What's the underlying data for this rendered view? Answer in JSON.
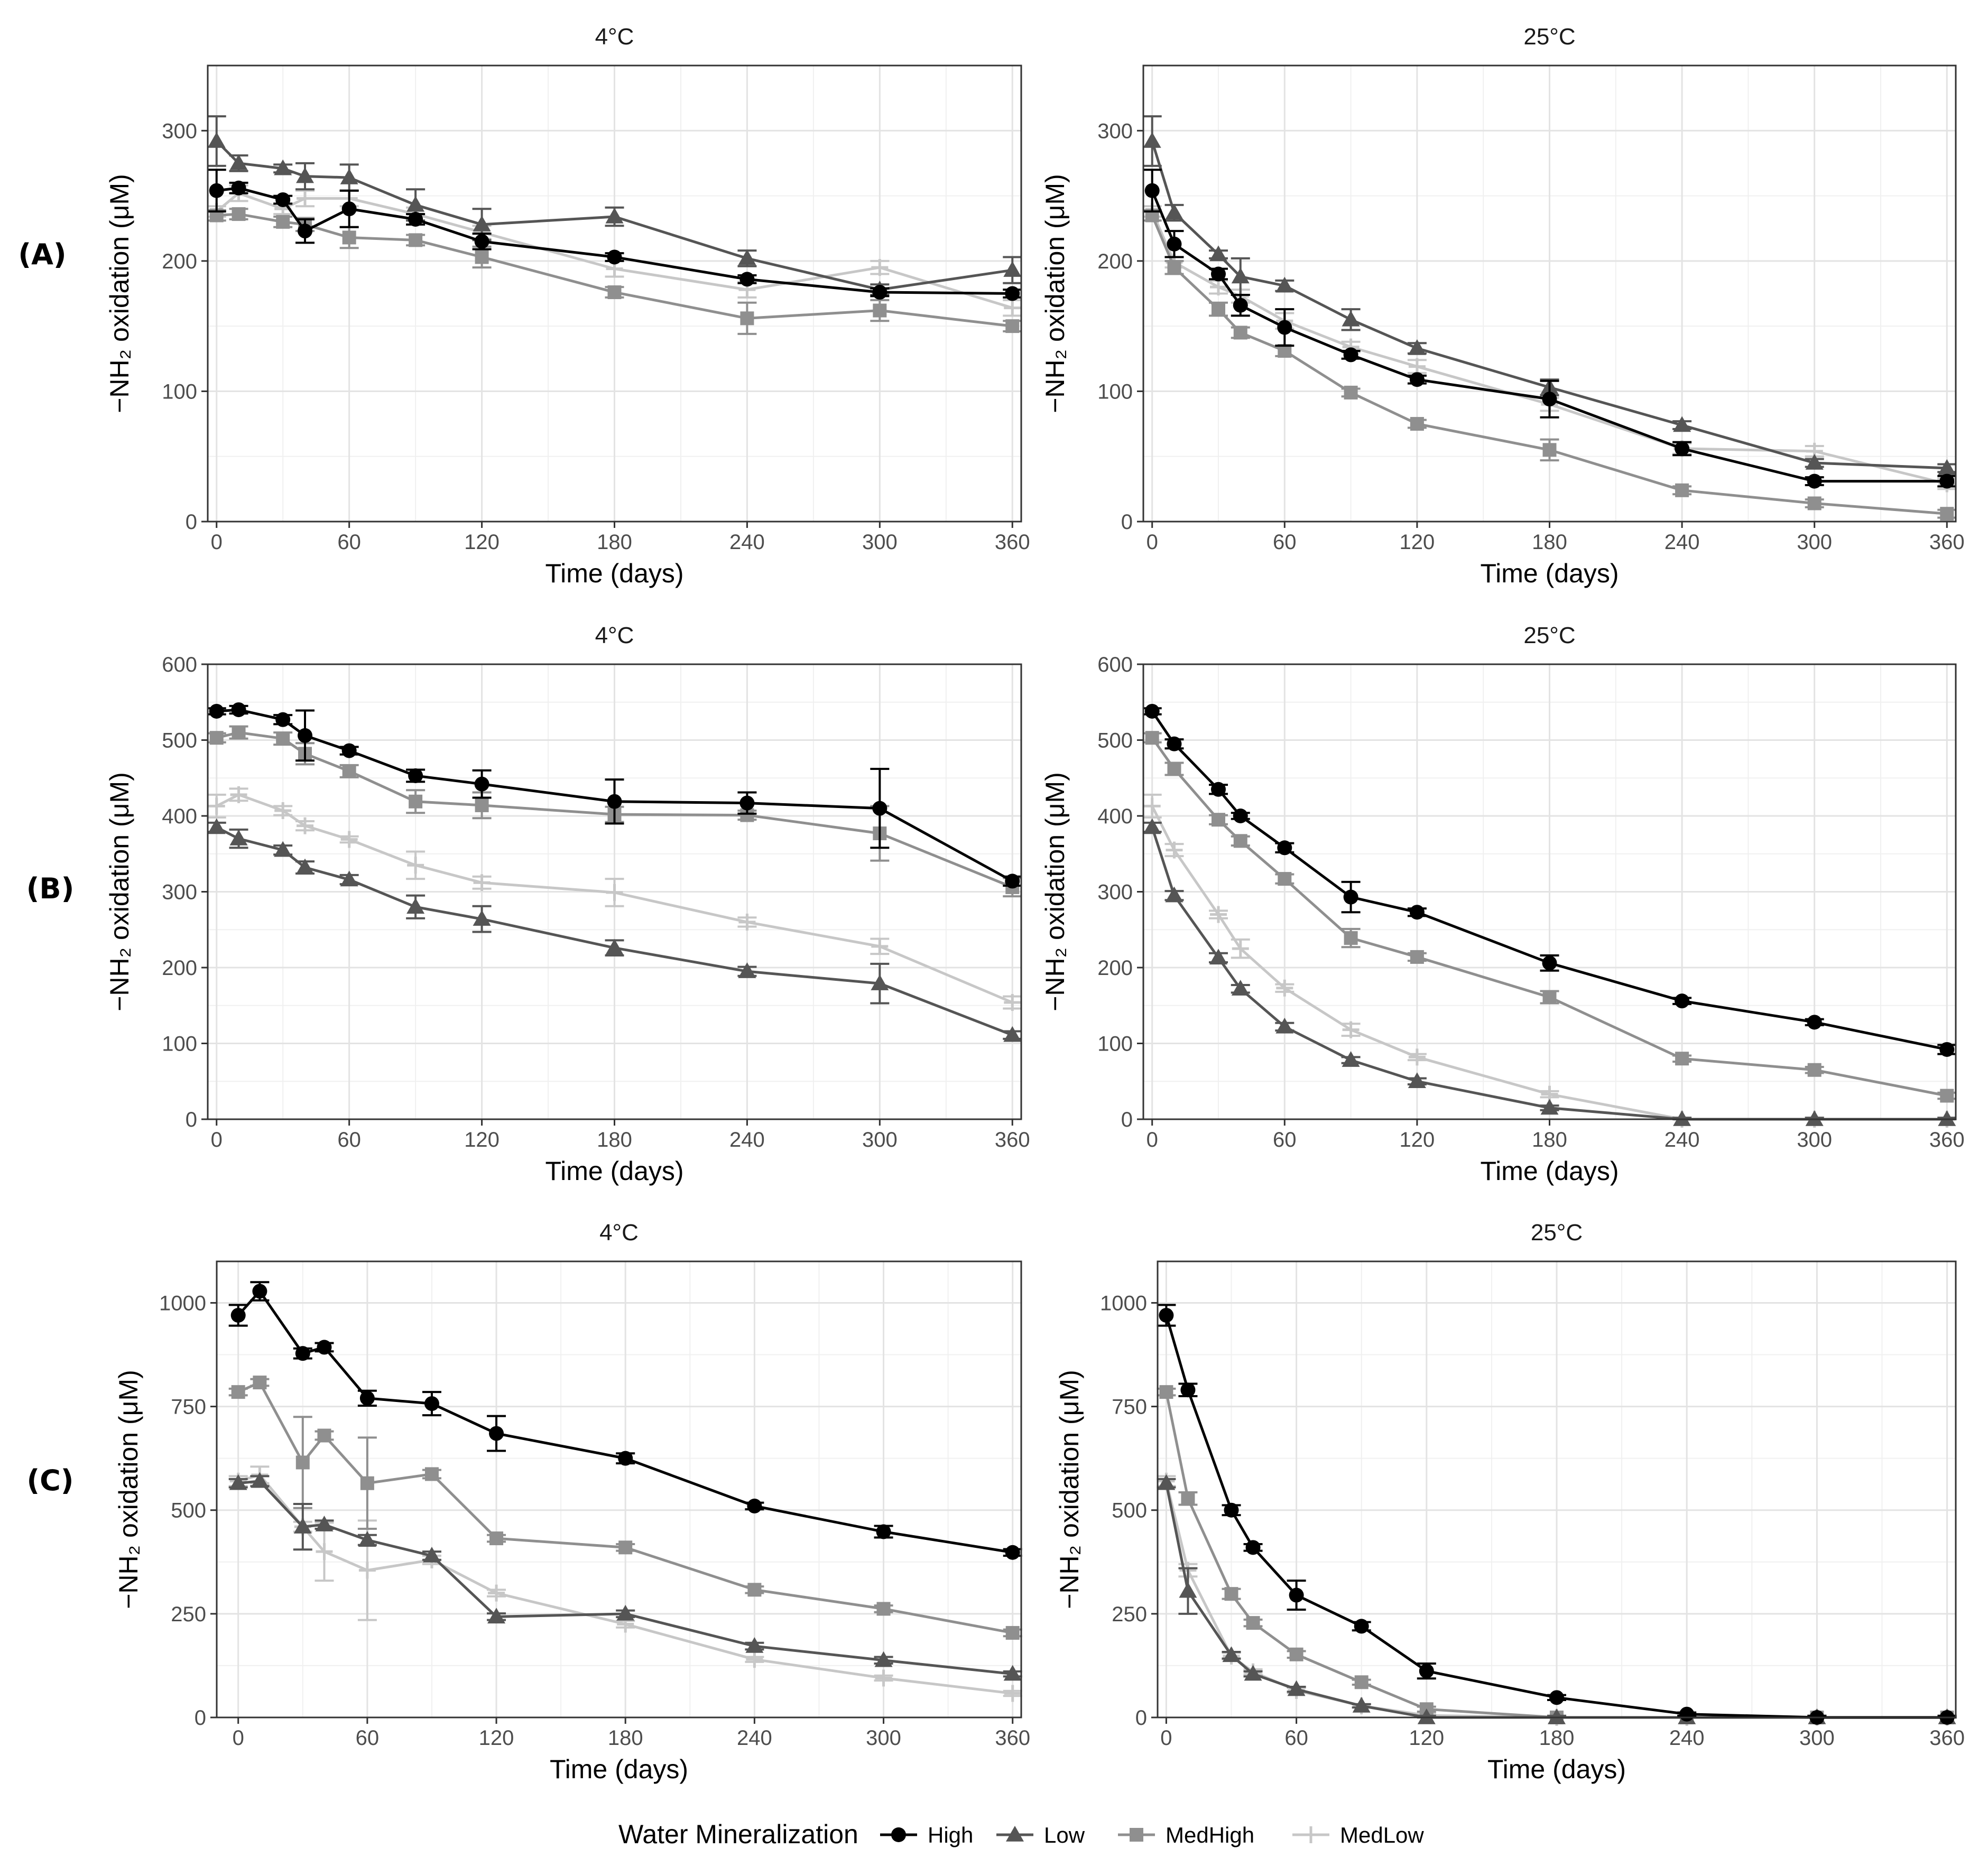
{
  "x_axis_label": "Time (days)",
  "y_axis_label": "−NH₂ oxidation (μM)",
  "legend": {
    "title": "Water Mineralization",
    "entries": [
      {
        "series": "High",
        "label": "High"
      },
      {
        "series": "Low",
        "label": "Low"
      },
      {
        "series": "MedHigh",
        "label": "MedHigh"
      },
      {
        "series": "MedLow",
        "label": "MedLow"
      }
    ]
  },
  "series_styles": {
    "High": {
      "color": "#000000",
      "marker": "circle"
    },
    "Low": {
      "color": "#555555",
      "marker": "triangle"
    },
    "MedHigh": {
      "color": "#8f8f8f",
      "marker": "square"
    },
    "MedLow": {
      "color": "#c7c7c7",
      "marker": "plus"
    }
  },
  "rows": [
    {
      "label": "(A)"
    },
    {
      "label": "(B)"
    },
    {
      "label": "(C)"
    }
  ],
  "chart_data": [
    {
      "type": "line",
      "row": 0,
      "col": 0,
      "title": "4°C",
      "xlabel": "Time (days)",
      "ylabel": "−NH₂ oxidation (μM)",
      "xlim": [
        -4,
        364
      ],
      "ylim": [
        0,
        350
      ],
      "xticks": [
        0,
        60,
        120,
        180,
        240,
        300,
        360
      ],
      "yticks": [
        0,
        100,
        200,
        300
      ],
      "x": [
        0,
        10,
        30,
        40,
        60,
        90,
        120,
        180,
        240,
        300,
        360
      ],
      "series": [
        {
          "name": "High",
          "values": [
            254,
            256,
            247,
            223,
            240,
            232,
            215,
            203,
            186,
            176,
            175
          ],
          "err": [
            16,
            4,
            3,
            9,
            14,
            4,
            6,
            3,
            3,
            3,
            3
          ]
        },
        {
          "name": "Low",
          "values": [
            292,
            275,
            271,
            265,
            264,
            243,
            228,
            234,
            202,
            178,
            193
          ],
          "err": [
            19,
            6,
            3,
            10,
            10,
            12,
            12,
            7,
            6,
            4,
            10
          ]
        },
        {
          "name": "MedHigh",
          "values": [
            235,
            236,
            230,
            228,
            218,
            216,
            203,
            176,
            156,
            162,
            150
          ],
          "err": [
            4,
            4,
            4,
            5,
            8,
            4,
            8,
            4,
            12,
            8,
            4
          ]
        },
        {
          "name": "MedLow",
          "values": [
            238,
            252,
            240,
            248,
            248,
            236,
            222,
            194,
            178,
            195,
            164
          ],
          "err": [
            4,
            6,
            4,
            6,
            6,
            5,
            5,
            6,
            6,
            5,
            6
          ]
        }
      ]
    },
    {
      "type": "line",
      "row": 0,
      "col": 1,
      "title": "25°C",
      "xlabel": "Time (days)",
      "ylabel": "−NH₂ oxidation (μM)",
      "xlim": [
        -4,
        364
      ],
      "ylim": [
        0,
        350
      ],
      "xticks": [
        0,
        60,
        120,
        180,
        240,
        300,
        360
      ],
      "yticks": [
        0,
        100,
        200,
        300
      ],
      "x": [
        0,
        10,
        30,
        40,
        60,
        90,
        120,
        180,
        240,
        300,
        360
      ],
      "series": [
        {
          "name": "High",
          "values": [
            254,
            213,
            190,
            166,
            149,
            128,
            109,
            94,
            56,
            31,
            31
          ],
          "err": [
            16,
            10,
            4,
            8,
            14,
            3,
            3,
            14,
            5,
            3,
            4
          ]
        },
        {
          "name": "Low",
          "values": [
            292,
            237,
            205,
            188,
            181,
            155,
            133,
            103,
            74,
            45,
            41
          ],
          "err": [
            19,
            6,
            3,
            14,
            4,
            8,
            4,
            6,
            3,
            3,
            3
          ]
        },
        {
          "name": "MedHigh",
          "values": [
            235,
            195,
            163,
            145,
            131,
            99,
            75,
            55,
            24,
            14,
            6
          ],
          "err": [
            4,
            5,
            5,
            4,
            4,
            3,
            3,
            8,
            3,
            3,
            3
          ]
        },
        {
          "name": "MedLow",
          "values": [
            238,
            199,
            180,
            173,
            154,
            134,
            119,
            90,
            56,
            54,
            29
          ],
          "err": [
            4,
            4,
            5,
            5,
            6,
            4,
            5,
            5,
            4,
            4,
            4
          ]
        }
      ]
    },
    {
      "type": "line",
      "row": 1,
      "col": 0,
      "title": "4°C",
      "xlabel": "Time (days)",
      "ylabel": "−NH₂ oxidation (μM)",
      "xlim": [
        -4,
        364
      ],
      "ylim": [
        0,
        600
      ],
      "xticks": [
        0,
        60,
        120,
        180,
        240,
        300,
        360
      ],
      "yticks": [
        0,
        100,
        200,
        300,
        400,
        500,
        600
      ],
      "x": [
        0,
        10,
        30,
        40,
        60,
        90,
        120,
        180,
        240,
        300,
        360
      ],
      "series": [
        {
          "name": "High",
          "values": [
            538,
            540,
            527,
            506,
            486,
            453,
            442,
            419,
            417,
            410,
            314
          ],
          "err": [
            4,
            5,
            6,
            33,
            5,
            8,
            18,
            29,
            14,
            52,
            6
          ]
        },
        {
          "name": "Low",
          "values": [
            385,
            370,
            355,
            332,
            316,
            280,
            264,
            226,
            195,
            179,
            111
          ],
          "err": [
            6,
            12,
            6,
            8,
            6,
            15,
            17,
            10,
            6,
            26,
            5
          ]
        },
        {
          "name": "MedHigh",
          "values": [
            503,
            510,
            502,
            482,
            459,
            419,
            414,
            402,
            401,
            377,
            306
          ],
          "err": [
            6,
            8,
            8,
            14,
            8,
            15,
            17,
            10,
            6,
            36,
            12
          ]
        },
        {
          "name": "MedLow",
          "values": [
            413,
            428,
            407,
            387,
            369,
            335,
            312,
            299,
            260,
            228,
            154
          ],
          "err": [
            15,
            8,
            6,
            6,
            4,
            18,
            8,
            18,
            6,
            10,
            8
          ]
        }
      ]
    },
    {
      "type": "line",
      "row": 1,
      "col": 1,
      "title": "25°C",
      "xlabel": "Time (days)",
      "ylabel": "−NH₂ oxidation (μM)",
      "xlim": [
        -4,
        364
      ],
      "ylim": [
        0,
        600
      ],
      "xticks": [
        0,
        60,
        120,
        180,
        240,
        300,
        360
      ],
      "yticks": [
        0,
        100,
        200,
        300,
        400,
        500,
        600
      ],
      "x": [
        0,
        10,
        30,
        40,
        60,
        90,
        120,
        180,
        240,
        300,
        360
      ],
      "series": [
        {
          "name": "High",
          "values": [
            538,
            495,
            435,
            400,
            358,
            293,
            273,
            206,
            156,
            128,
            92
          ],
          "err": [
            4,
            6,
            6,
            4,
            6,
            20,
            5,
            10,
            4,
            4,
            6
          ]
        },
        {
          "name": "Low",
          "values": [
            385,
            295,
            213,
            172,
            122,
            78,
            50,
            15,
            0,
            0,
            0
          ],
          "err": [
            6,
            6,
            6,
            5,
            5,
            4,
            4,
            3,
            2,
            2,
            2
          ]
        },
        {
          "name": "MedHigh",
          "values": [
            503,
            462,
            395,
            367,
            317,
            239,
            214,
            161,
            80,
            65,
            31
          ],
          "err": [
            6,
            8,
            6,
            6,
            6,
            12,
            5,
            8,
            4,
            4,
            4
          ]
        },
        {
          "name": "MedLow",
          "values": [
            413,
            355,
            270,
            225,
            173,
            118,
            82,
            33,
            0,
            0,
            0
          ],
          "err": [
            15,
            8,
            5,
            12,
            5,
            8,
            4,
            4,
            2,
            2,
            2
          ]
        }
      ]
    },
    {
      "type": "line",
      "row": 2,
      "col": 0,
      "title": "4°C",
      "xlabel": "Time (days)",
      "ylabel": "−NH₂ oxidation (μM)",
      "xlim": [
        -10,
        364
      ],
      "ylim": [
        0,
        1100
      ],
      "xticks": [
        0,
        60,
        120,
        180,
        240,
        300,
        360
      ],
      "yticks": [
        0,
        250,
        500,
        750,
        1000
      ],
      "x": [
        0,
        10,
        30,
        40,
        60,
        90,
        120,
        180,
        240,
        300,
        360
      ],
      "series": [
        {
          "name": "High",
          "values": [
            970,
            1028,
            878,
            893,
            770,
            757,
            685,
            625,
            510,
            448,
            398
          ],
          "err": [
            25,
            22,
            12,
            10,
            18,
            28,
            42,
            12,
            8,
            14,
            8
          ]
        },
        {
          "name": "Low",
          "values": [
            565,
            570,
            460,
            465,
            428,
            390,
            243,
            250,
            172,
            138,
            105
          ],
          "err": [
            10,
            12,
            55,
            10,
            12,
            10,
            8,
            8,
            8,
            8,
            6
          ]
        },
        {
          "name": "MedHigh",
          "values": [
            785,
            808,
            615,
            680,
            565,
            587,
            432,
            410,
            308,
            262,
            204
          ],
          "err": [
            8,
            8,
            110,
            10,
            110,
            10,
            8,
            8,
            8,
            8,
            8
          ]
        },
        {
          "name": "MedLow",
          "values": [
            570,
            585,
            460,
            400,
            355,
            380,
            300,
            225,
            140,
            95,
            58
          ],
          "err": [
            12,
            20,
            12,
            70,
            120,
            10,
            8,
            8,
            6,
            6,
            6
          ]
        }
      ]
    },
    {
      "type": "line",
      "row": 2,
      "col": 1,
      "title": "25°C",
      "xlabel": "Time (days)",
      "ylabel": "−NH₂ oxidation (μM)",
      "xlim": [
        -4,
        364
      ],
      "ylim": [
        0,
        1100
      ],
      "xticks": [
        0,
        60,
        120,
        180,
        240,
        300,
        360
      ],
      "yticks": [
        0,
        250,
        500,
        750,
        1000
      ],
      "x": [
        0,
        10,
        30,
        40,
        60,
        90,
        120,
        180,
        240,
        300,
        360
      ],
      "series": [
        {
          "name": "High",
          "values": [
            970,
            790,
            500,
            410,
            295,
            220,
            112,
            48,
            8,
            0,
            0
          ],
          "err": [
            25,
            15,
            12,
            8,
            35,
            10,
            18,
            6,
            4,
            4,
            4
          ]
        },
        {
          "name": "Low",
          "values": [
            565,
            305,
            150,
            105,
            68,
            28,
            0,
            0,
            0,
            0,
            0
          ],
          "err": [
            10,
            55,
            8,
            6,
            6,
            4,
            4,
            4,
            4,
            4,
            4
          ]
        },
        {
          "name": "MedHigh",
          "values": [
            785,
            528,
            298,
            228,
            152,
            85,
            20,
            0,
            0,
            0,
            0
          ],
          "err": [
            8,
            15,
            12,
            8,
            8,
            6,
            6,
            4,
            4,
            4,
            4
          ]
        },
        {
          "name": "MedLow",
          "values": [
            570,
            355,
            148,
            110,
            65,
            28,
            5,
            0,
            0,
            0,
            0
          ],
          "err": [
            12,
            15,
            8,
            6,
            6,
            4,
            4,
            4,
            4,
            4,
            4
          ]
        }
      ]
    }
  ]
}
